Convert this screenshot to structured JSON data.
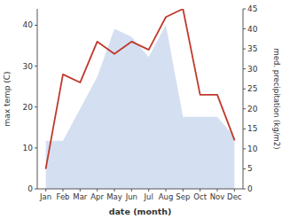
{
  "chart_data": {
    "type": "line",
    "xlabel": "date (month)",
    "ylabel": "max temp (C)",
    "y2label": "med. precipitation (kg/m2)",
    "categories": [
      "Jan",
      "Feb",
      "Mar",
      "Apr",
      "May",
      "Jun",
      "Jul",
      "Aug",
      "Sep",
      "Oct",
      "Nov",
      "Dec"
    ],
    "series": [
      {
        "type": "line",
        "color": "#c0392b",
        "values": [
          5,
          28,
          26,
          36,
          33,
          36,
          34,
          42,
          44,
          23,
          23,
          12
        ]
      },
      {
        "type": "area",
        "axis": "y2",
        "color": "#c5d4ee",
        "values": [
          12,
          12,
          20,
          28,
          40,
          38,
          33,
          41,
          18,
          18,
          18,
          13
        ]
      }
    ],
    "ylim": [
      0,
      44
    ],
    "yticks": [
      0,
      10,
      20,
      30,
      40
    ],
    "y2lim": [
      0,
      45
    ],
    "y2ticks": [
      0,
      5,
      10,
      15,
      20,
      25,
      30,
      35,
      40,
      45
    ]
  }
}
